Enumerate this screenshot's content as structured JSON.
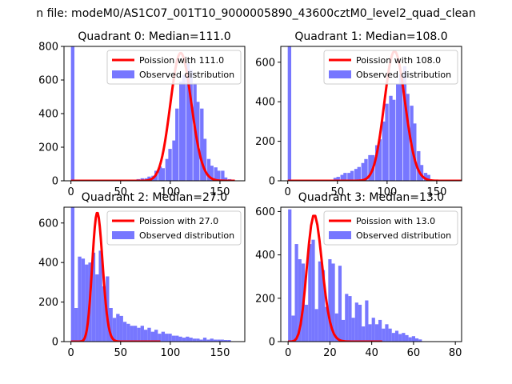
{
  "figure": {
    "suptitle": "n file: modeM0/AS1C07_001T10_9000005890_43600cztM0_level2_quad_clean"
  },
  "colors": {
    "bar": "#7777ff",
    "curve": "#ff0000"
  },
  "chart_data": [
    {
      "type": "bar",
      "title": "Quadrant 0: Median=111.0",
      "xlim": [
        -7,
        175
      ],
      "ylim": [
        0,
        800
      ],
      "xticks": [
        0,
        50,
        100,
        150
      ],
      "yticks": [
        0,
        200,
        400,
        600,
        800
      ],
      "bin_width": 3.5,
      "histogram": {
        "name": "Observed distribution",
        "x": [
          0,
          66,
          70,
          74,
          77,
          81,
          84,
          88,
          91,
          95,
          98,
          102,
          105,
          109,
          112,
          116,
          119,
          123,
          126,
          130,
          133,
          137,
          140,
          144,
          147,
          151,
          154,
          158
        ],
        "values": [
          800,
          10,
          15,
          15,
          25,
          30,
          60,
          85,
          75,
          130,
          190,
          240,
          430,
          590,
          630,
          700,
          660,
          580,
          470,
          430,
          250,
          130,
          90,
          80,
          60,
          60,
          20,
          10
        ]
      },
      "curve": {
        "name": "Poission with 111.0",
        "mean": 111.0,
        "peak": 760,
        "x_range": [
          0,
          165
        ]
      },
      "legend": {
        "position": "upper right",
        "entries": [
          "Poission with 111.0",
          "Observed distribution"
        ]
      }
    },
    {
      "type": "bar",
      "title": "Quadrant 1: Median=108.0",
      "xlim": [
        -7,
        175
      ],
      "ylim": [
        0,
        680
      ],
      "xticks": [
        0,
        50,
        100,
        150
      ],
      "yticks": [
        0,
        200,
        400,
        600
      ],
      "bin_width": 3.5,
      "histogram": {
        "name": "Observed distribution",
        "x": [
          0,
          46,
          49,
          53,
          56,
          60,
          63,
          67,
          70,
          74,
          77,
          81,
          84,
          88,
          91,
          95,
          98,
          102,
          105,
          109,
          112,
          116,
          119,
          123,
          126,
          130,
          133,
          137,
          140
        ],
        "values": [
          680,
          15,
          20,
          30,
          40,
          40,
          50,
          60,
          70,
          90,
          110,
          130,
          130,
          180,
          210,
          300,
          390,
          430,
          410,
          490,
          540,
          580,
          440,
          380,
          290,
          150,
          80,
          40,
          30
        ]
      },
      "curve": {
        "name": "Poission with 108.0",
        "mean": 108.0,
        "peak": 655,
        "x_range": [
          0,
          175
        ]
      },
      "legend": {
        "position": "upper right",
        "entries": [
          "Poission with 108.0",
          "Observed distribution"
        ]
      }
    },
    {
      "type": "bar",
      "title": "Quadrant 2: Median=27.0",
      "xlim": [
        -7,
        175
      ],
      "ylim": [
        0,
        680
      ],
      "xticks": [
        0,
        50,
        100,
        150
      ],
      "yticks": [
        0,
        200,
        400,
        600
      ],
      "bin_width": 3.5,
      "histogram": {
        "name": "Observed distribution",
        "x": [
          0,
          3.5,
          7,
          10.5,
          14,
          17.5,
          21,
          24.5,
          28,
          31.5,
          35,
          38.5,
          42,
          45.5,
          49,
          52.5,
          56,
          59.5,
          63,
          66.5,
          70,
          73.5,
          77,
          80.5,
          84,
          87.5,
          91,
          94.5,
          98,
          101.5,
          105,
          108.5,
          112,
          115.5,
          119,
          122.5,
          126,
          129.5,
          133,
          136.5,
          140,
          143.5,
          147,
          150.5,
          154,
          157.5
        ],
        "values": [
          680,
          170,
          430,
          420,
          390,
          400,
          450,
          340,
          460,
          280,
          330,
          170,
          120,
          140,
          130,
          100,
          90,
          80,
          80,
          70,
          80,
          60,
          70,
          50,
          60,
          40,
          50,
          40,
          40,
          30,
          30,
          25,
          20,
          25,
          20,
          15,
          15,
          10,
          20,
          10,
          15,
          10,
          10,
          10,
          8,
          8
        ]
      },
      "curve": {
        "name": "Poission with 27.0",
        "mean": 27.0,
        "peak": 650,
        "x_range": [
          0,
          90
        ]
      },
      "legend": {
        "position": "upper right",
        "entries": [
          "Poission with 27.0",
          "Observed distribution"
        ]
      }
    },
    {
      "type": "bar",
      "title": "Quadrant 3: Median=13.0",
      "xlim": [
        -3.5,
        83
      ],
      "ylim": [
        0,
        620
      ],
      "xticks": [
        0,
        20,
        40,
        60,
        80
      ],
      "yticks": [
        0,
        200,
        400,
        600
      ],
      "bin_width": 1.6,
      "histogram": {
        "name": "Observed distribution",
        "x": [
          0,
          1.6,
          3.2,
          4.8,
          6.4,
          8,
          9.6,
          11.2,
          12.8,
          14.4,
          16,
          17.6,
          19.2,
          20.8,
          22.4,
          24,
          25.6,
          27.2,
          28.8,
          30.4,
          32,
          33.6,
          35.2,
          36.8,
          38.4,
          40,
          41.6,
          43.2,
          44.8,
          46.4,
          48,
          49.6,
          51.2,
          52.8,
          54.4,
          56,
          57.6,
          59.2,
          60.8,
          62.4
        ],
        "values": [
          610,
          120,
          450,
          380,
          360,
          170,
          450,
          470,
          150,
          370,
          330,
          160,
          380,
          360,
          130,
          350,
          100,
          220,
          210,
          110,
          180,
          170,
          70,
          190,
          80,
          110,
          80,
          100,
          60,
          80,
          60,
          40,
          50,
          35,
          40,
          30,
          20,
          25,
          15,
          10
        ]
      },
      "curve": {
        "name": "Poission with 13.0",
        "mean": 13.0,
        "peak": 580,
        "x_range": [
          0,
          45
        ]
      },
      "legend": {
        "position": "upper right",
        "entries": [
          "Poission with 13.0",
          "Observed distribution"
        ]
      }
    }
  ]
}
